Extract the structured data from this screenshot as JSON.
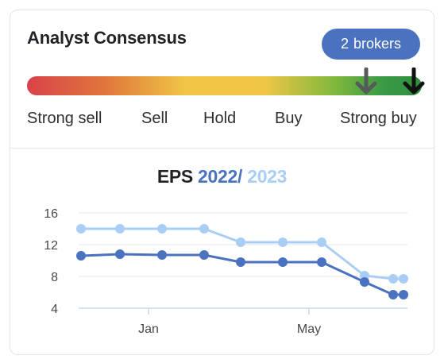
{
  "consensus": {
    "title": "Analyst Consensus",
    "brokers_count": "2",
    "brokers_label": "brokers",
    "scale": [
      "Strong sell",
      "Sell",
      "Hold",
      "Buy",
      "Strong buy"
    ],
    "arrow_icons": [
      "arrow-down-icon",
      "arrow-down-icon"
    ],
    "colors": {
      "badge": "#4a72c0",
      "arrow_previous": "#555b58",
      "arrow_current": "#111111"
    }
  },
  "eps": {
    "label": "EPS",
    "year1": "2022",
    "separator": "/",
    "year2": "2023",
    "colors": {
      "year1": "#4a72c0",
      "year2": "#a9cdf5"
    }
  },
  "chart_data": {
    "type": "line",
    "title": "EPS 2022 / 2023",
    "xlabel": "",
    "ylabel": "",
    "ylim": [
      4,
      16
    ],
    "yticks": [
      16,
      12,
      8,
      4
    ],
    "xticks": [
      "Jan",
      "May"
    ],
    "grid": true,
    "x": [
      0,
      1,
      2,
      3,
      4,
      5,
      6,
      7,
      8,
      8.3
    ],
    "series": [
      {
        "name": "2022",
        "color": "#4a72c0",
        "values": [
          10.6,
          10.8,
          10.7,
          10.7,
          9.8,
          9.8,
          9.8,
          7.3,
          5.7,
          5.7
        ]
      },
      {
        "name": "2023",
        "color": "#a9cdf5",
        "values": [
          14.0,
          14.0,
          14.0,
          14.0,
          12.3,
          12.3,
          12.3,
          8.1,
          7.7,
          7.7
        ]
      }
    ]
  }
}
